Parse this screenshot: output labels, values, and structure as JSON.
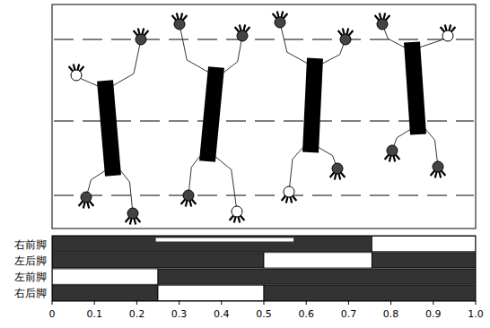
{
  "chart_data": {
    "type": "gantt",
    "rows": [
      {
        "label": "右前脚",
        "segments": [
          {
            "start": 0,
            "end": 0.755,
            "color": "#333333"
          },
          {
            "start": 0.755,
            "end": 1,
            "color": "#ffffff"
          }
        ],
        "stripes": [
          {
            "start": 0.245,
            "end": 0.57,
            "color": "#ffffff"
          }
        ]
      },
      {
        "label": "左后脚",
        "segments": [
          {
            "start": 0,
            "end": 0.5,
            "color": "#333333"
          },
          {
            "start": 0.5,
            "end": 0.755,
            "color": "#ffffff"
          },
          {
            "start": 0.755,
            "end": 1,
            "color": "#333333"
          }
        ]
      },
      {
        "label": "左前脚",
        "segments": [
          {
            "start": 0,
            "end": 0.25,
            "color": "#ffffff"
          },
          {
            "start": 0.25,
            "end": 1,
            "color": "#333333"
          }
        ]
      },
      {
        "label": "右后脚",
        "segments": [
          {
            "start": 0,
            "end": 0.25,
            "color": "#333333"
          },
          {
            "start": 0.25,
            "end": 0.5,
            "color": "#ffffff"
          },
          {
            "start": 0.5,
            "end": 1,
            "color": "#333333"
          }
        ]
      }
    ],
    "xlim": [
      0,
      1
    ],
    "xticks": [
      0,
      0.1,
      0.2,
      0.3,
      0.4,
      0.5,
      0.6,
      0.7,
      0.8,
      0.9,
      {
        "value": 1,
        "label": "1.0"
      }
    ]
  }
}
